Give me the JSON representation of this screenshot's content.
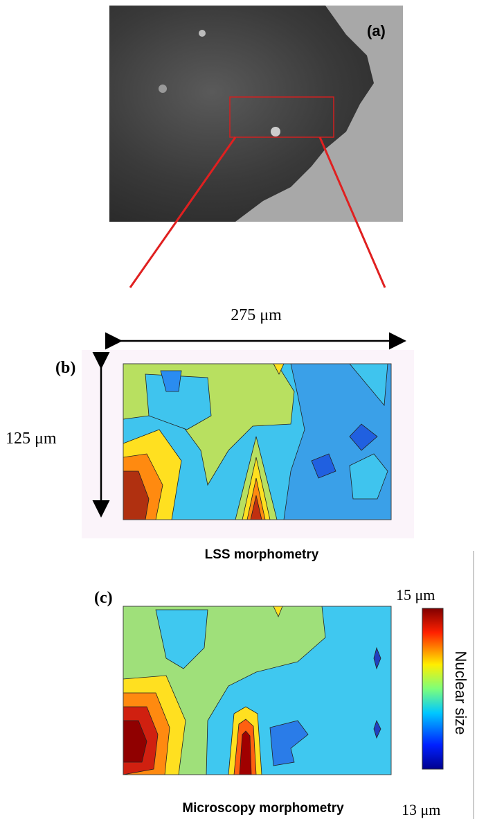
{
  "panel_a": {
    "label": "(a)"
  },
  "scale_x": "275 μm",
  "panel_b": {
    "label": "(b)",
    "scale_y": "125 μm",
    "caption": "LSS morphometry"
  },
  "colorbar": {
    "max": "15 μm",
    "title": "Nuclear size",
    "min": "13 μm"
  },
  "panel_c": {
    "label": "(c)",
    "caption": "Microscopy morphometry"
  }
}
